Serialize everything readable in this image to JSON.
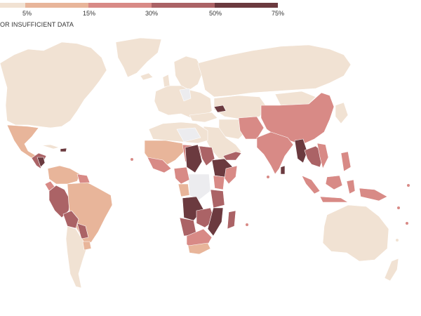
{
  "legend": {
    "ticks": [
      "5%",
      "15%",
      "30%",
      "50%",
      "75%"
    ],
    "no_data_label": "OR INSUFFICIENT DATA",
    "colors": [
      "#f1e2d3",
      "#e8b59a",
      "#d88a86",
      "#ab6366",
      "#6b3a3f"
    ]
  },
  "map_data": {
    "type": "choropleth",
    "classes": [
      {
        "range": "<5%",
        "color": "#f1e2d3"
      },
      {
        "range": "5-15%",
        "color": "#e8b59a"
      },
      {
        "range": "15-30%",
        "color": "#d88a86"
      },
      {
        "range": "30-50%",
        "color": "#ab6366"
      },
      {
        "range": "50-75%",
        "color": "#6b3a3f"
      }
    ],
    "no_data_color": "#ececef",
    "land_color": "#f1e2d3"
  }
}
